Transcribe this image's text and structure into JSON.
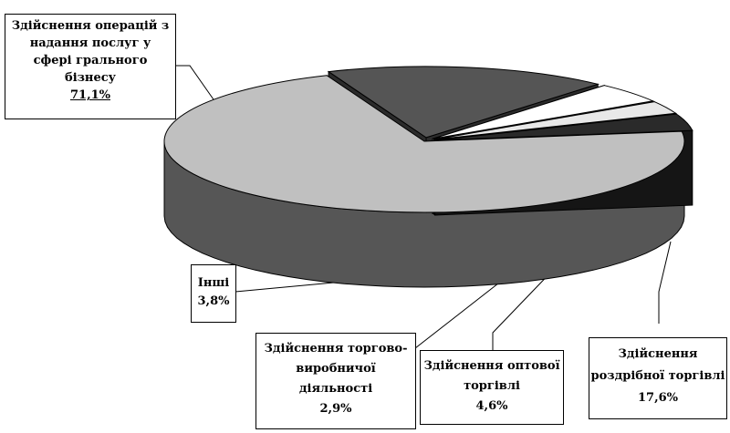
{
  "chart_data": {
    "type": "pie",
    "title": "",
    "slices": [
      {
        "label_lines": [
          "Здійснення операцій з",
          "надання послуг у",
          "сфері грального",
          "бізнесу"
        ],
        "value": 71.1,
        "value_label": "71,1%",
        "color": "#c0c0c0"
      },
      {
        "label_lines": [
          "Здійснення",
          "роздрібної торгівлі"
        ],
        "value": 17.6,
        "value_label": "17,6%",
        "color": "#555555"
      },
      {
        "label_lines": [
          "Здійснення оптової",
          "торгівлі"
        ],
        "value": 4.6,
        "value_label": "4,6%",
        "color": "#ffffff"
      },
      {
        "label_lines": [
          "Здійснення торгово-",
          "виробничої",
          "діяльності"
        ],
        "value": 2.9,
        "value_label": "2,9%",
        "color": "#e8e8e8"
      },
      {
        "label_lines": [
          "Інші"
        ],
        "value": 3.8,
        "value_label": "3,8%",
        "color": "#2a2a2a"
      }
    ]
  }
}
